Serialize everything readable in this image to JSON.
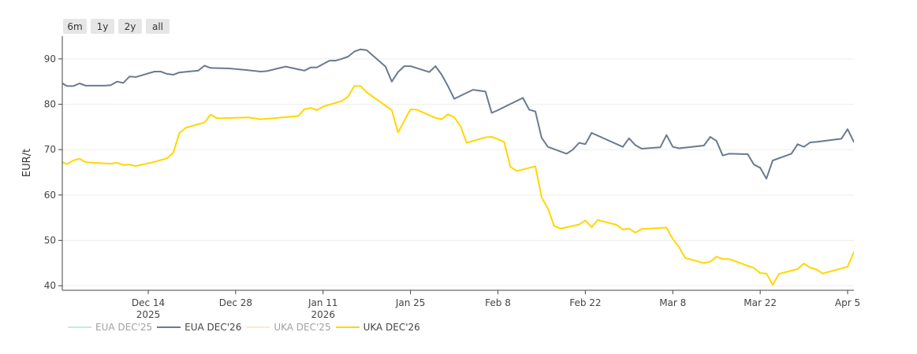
{
  "range_selector": [
    "6m",
    "1y",
    "2y",
    "all"
  ],
  "chart_data": {
    "type": "line",
    "title": "",
    "xlabel": "",
    "ylabel": "EUR/t",
    "ylim": [
      39,
      95
    ],
    "yticks": [
      40,
      50,
      60,
      70,
      80,
      90
    ],
    "xlim": [
      "2025-11-29",
      "2026-04-05"
    ],
    "xticks": [
      {
        "date": "2025-12-14",
        "label": "Dec 14",
        "sublabel": "2025"
      },
      {
        "date": "2025-12-28",
        "label": "Dec 28",
        "sublabel": ""
      },
      {
        "date": "2026-01-11",
        "label": "Jan 11",
        "sublabel": "2026"
      },
      {
        "date": "2026-01-25",
        "label": "Jan 25",
        "sublabel": ""
      },
      {
        "date": "2026-02-08",
        "label": "Feb 8",
        "sublabel": ""
      },
      {
        "date": "2026-02-22",
        "label": "Feb 22",
        "sublabel": ""
      },
      {
        "date": "2026-03-08",
        "label": "Mar 8",
        "sublabel": ""
      },
      {
        "date": "2026-03-22",
        "label": "Mar 22",
        "sublabel": ""
      },
      {
        "date": "2026-04-05",
        "label": "Apr 5",
        "sublabel": ""
      }
    ],
    "grid": "horizontal",
    "legend_position": "bottom-left",
    "series": [
      {
        "name": "EUA DEC'25",
        "color": "#8fd3d8",
        "visible": false,
        "points": []
      },
      {
        "name": "EUA DEC'26",
        "color": "#6b7a8f",
        "visible": true,
        "points": [
          [
            "2025-11-29",
            84.9
          ],
          [
            "2025-11-30",
            84.8
          ],
          [
            "2025-12-01",
            84.0
          ],
          [
            "2025-12-02",
            84.0
          ],
          [
            "2025-12-03",
            84.6
          ],
          [
            "2025-12-04",
            84.1
          ],
          [
            "2025-12-07",
            84.1
          ],
          [
            "2025-12-08",
            84.2
          ],
          [
            "2025-12-09",
            85.0
          ],
          [
            "2025-12-10",
            84.7
          ],
          [
            "2025-12-11",
            86.1
          ],
          [
            "2025-12-12",
            86.0
          ],
          [
            "2025-12-15",
            87.2
          ],
          [
            "2025-12-16",
            87.2
          ],
          [
            "2025-12-17",
            86.7
          ],
          [
            "2025-12-18",
            86.5
          ],
          [
            "2025-12-19",
            87.0
          ],
          [
            "2025-12-22",
            87.4
          ],
          [
            "2025-12-23",
            88.5
          ],
          [
            "2025-12-24",
            88.0
          ],
          [
            "2025-12-27",
            87.9
          ],
          [
            "2025-12-30",
            87.5
          ],
          [
            "2026-01-01",
            87.2
          ],
          [
            "2026-01-02",
            87.3
          ],
          [
            "2026-01-05",
            88.3
          ],
          [
            "2026-01-08",
            87.4
          ],
          [
            "2026-01-09",
            88.1
          ],
          [
            "2026-01-10",
            88.1
          ],
          [
            "2026-01-12",
            89.6
          ],
          [
            "2026-01-13",
            89.6
          ],
          [
            "2026-01-14",
            90.0
          ],
          [
            "2026-01-15",
            90.5
          ],
          [
            "2026-01-16",
            91.6
          ],
          [
            "2026-01-17",
            92.1
          ],
          [
            "2026-01-18",
            91.9
          ],
          [
            "2026-01-21",
            88.3
          ],
          [
            "2026-01-22",
            85.0
          ],
          [
            "2026-01-23",
            87.1
          ],
          [
            "2026-01-24",
            88.4
          ],
          [
            "2026-01-25",
            88.4
          ],
          [
            "2026-01-28",
            87.1
          ],
          [
            "2026-01-29",
            88.4
          ],
          [
            "2026-01-30",
            86.5
          ],
          [
            "2026-01-31",
            84.0
          ],
          [
            "2026-02-01",
            81.2
          ],
          [
            "2026-02-04",
            83.2
          ],
          [
            "2026-02-06",
            82.8
          ],
          [
            "2026-02-07",
            78.1
          ],
          [
            "2026-02-08",
            78.7
          ],
          [
            "2026-02-12",
            81.4
          ],
          [
            "2026-02-13",
            78.8
          ],
          [
            "2026-02-14",
            78.4
          ],
          [
            "2026-02-15",
            72.6
          ],
          [
            "2026-02-16",
            70.6
          ],
          [
            "2026-02-19",
            69.1
          ],
          [
            "2026-02-20",
            70.0
          ],
          [
            "2026-02-21",
            71.5
          ],
          [
            "2026-02-22",
            71.2
          ],
          [
            "2026-02-23",
            73.7
          ],
          [
            "2026-02-28",
            70.6
          ],
          [
            "2026-03-01",
            72.5
          ],
          [
            "2026-03-02",
            71.0
          ],
          [
            "2026-03-03",
            70.2
          ],
          [
            "2026-03-06",
            70.5
          ],
          [
            "2026-03-07",
            73.2
          ],
          [
            "2026-03-08",
            70.6
          ],
          [
            "2026-03-09",
            70.3
          ],
          [
            "2026-03-13",
            70.9
          ],
          [
            "2026-03-14",
            72.8
          ],
          [
            "2026-03-15",
            71.9
          ],
          [
            "2026-03-16",
            68.7
          ],
          [
            "2026-03-17",
            69.1
          ],
          [
            "2026-03-20",
            69.0
          ],
          [
            "2026-03-21",
            66.7
          ],
          [
            "2026-03-22",
            66.0
          ],
          [
            "2026-03-23",
            63.6
          ],
          [
            "2026-03-24",
            67.6
          ],
          [
            "2026-03-27",
            69.1
          ],
          [
            "2026-03-28",
            71.2
          ],
          [
            "2026-03-29",
            70.6
          ],
          [
            "2026-03-30",
            71.6
          ],
          [
            "2026-03-31",
            71.7
          ],
          [
            "2026-04-04",
            72.4
          ],
          [
            "2026-04-05",
            74.5
          ],
          [
            "2026-04-06",
            71.7
          ],
          [
            "2026-04-10",
            71.7
          ]
        ]
      },
      {
        "name": "UKA DEC'25",
        "color": "#f7dc8a",
        "visible": false,
        "points": []
      },
      {
        "name": "UKA DEC'26",
        "color": "#ffd700",
        "visible": true,
        "points": [
          [
            "2025-11-29",
            67.3
          ],
          [
            "2025-11-30",
            67.4
          ],
          [
            "2025-12-01",
            66.8
          ],
          [
            "2025-12-02",
            67.6
          ],
          [
            "2025-12-03",
            68.0
          ],
          [
            "2025-12-04",
            67.2
          ],
          [
            "2025-12-08",
            66.9
          ],
          [
            "2025-12-09",
            67.1
          ],
          [
            "2025-12-10",
            66.6
          ],
          [
            "2025-12-11",
            66.7
          ],
          [
            "2025-12-12",
            66.4
          ],
          [
            "2025-12-15",
            67.3
          ],
          [
            "2025-12-16",
            67.7
          ],
          [
            "2025-12-17",
            68.1
          ],
          [
            "2025-12-18",
            69.3
          ],
          [
            "2025-12-19",
            73.7
          ],
          [
            "2025-12-20",
            74.8
          ],
          [
            "2025-12-23",
            76.0
          ],
          [
            "2025-12-24",
            77.7
          ],
          [
            "2025-12-25",
            76.9
          ],
          [
            "2025-12-30",
            77.1
          ],
          [
            "2026-01-01",
            76.7
          ],
          [
            "2026-01-07",
            77.4
          ],
          [
            "2026-01-08",
            78.9
          ],
          [
            "2026-01-09",
            79.2
          ],
          [
            "2026-01-10",
            78.7
          ],
          [
            "2026-01-11",
            79.5
          ],
          [
            "2026-01-14",
            80.7
          ],
          [
            "2026-01-15",
            81.7
          ],
          [
            "2026-01-16",
            84.0
          ],
          [
            "2026-01-17",
            84.0
          ],
          [
            "2026-01-18",
            82.6
          ],
          [
            "2026-01-22",
            78.7
          ],
          [
            "2026-01-23",
            73.8
          ],
          [
            "2026-01-25",
            78.9
          ],
          [
            "2026-01-26",
            78.8
          ],
          [
            "2026-01-29",
            77.0
          ],
          [
            "2026-01-30",
            76.7
          ],
          [
            "2026-01-31",
            77.8
          ],
          [
            "2026-02-01",
            77.1
          ],
          [
            "2026-02-02",
            75.2
          ],
          [
            "2026-02-03",
            71.5
          ],
          [
            "2026-02-06",
            72.7
          ],
          [
            "2026-02-07",
            72.8
          ],
          [
            "2026-02-08",
            72.3
          ],
          [
            "2026-02-09",
            71.7
          ],
          [
            "2026-02-10",
            66.2
          ],
          [
            "2026-02-11",
            65.3
          ],
          [
            "2026-02-14",
            66.3
          ],
          [
            "2026-02-15",
            59.5
          ],
          [
            "2026-02-16",
            57.0
          ],
          [
            "2026-02-17",
            53.2
          ],
          [
            "2026-02-18",
            52.6
          ],
          [
            "2026-02-21",
            53.5
          ],
          [
            "2026-02-22",
            54.4
          ],
          [
            "2026-02-23",
            52.9
          ],
          [
            "2026-02-24",
            54.5
          ],
          [
            "2026-02-27",
            53.4
          ],
          [
            "2026-02-28",
            52.4
          ],
          [
            "2026-03-01",
            52.6
          ],
          [
            "2026-03-02",
            51.7
          ],
          [
            "2026-03-03",
            52.5
          ],
          [
            "2026-03-07",
            52.8
          ],
          [
            "2026-03-08",
            50.3
          ],
          [
            "2026-03-09",
            48.5
          ],
          [
            "2026-03-10",
            46.1
          ],
          [
            "2026-03-13",
            45.0
          ],
          [
            "2026-03-14",
            45.3
          ],
          [
            "2026-03-15",
            46.4
          ],
          [
            "2026-03-16",
            45.9
          ],
          [
            "2026-03-17",
            45.9
          ],
          [
            "2026-03-21",
            43.9
          ],
          [
            "2026-03-22",
            42.8
          ],
          [
            "2026-03-23",
            42.7
          ],
          [
            "2026-03-24",
            40.2
          ],
          [
            "2026-03-25",
            42.6
          ],
          [
            "2026-03-28",
            43.7
          ],
          [
            "2026-03-29",
            44.9
          ],
          [
            "2026-03-30",
            44.0
          ],
          [
            "2026-03-31",
            43.6
          ],
          [
            "2026-04-01",
            42.7
          ],
          [
            "2026-04-04",
            43.8
          ],
          [
            "2026-04-05",
            44.2
          ],
          [
            "2026-04-06",
            47.4
          ],
          [
            "2026-04-07",
            48.7
          ],
          [
            "2026-04-08",
            47.6
          ]
        ]
      }
    ]
  }
}
